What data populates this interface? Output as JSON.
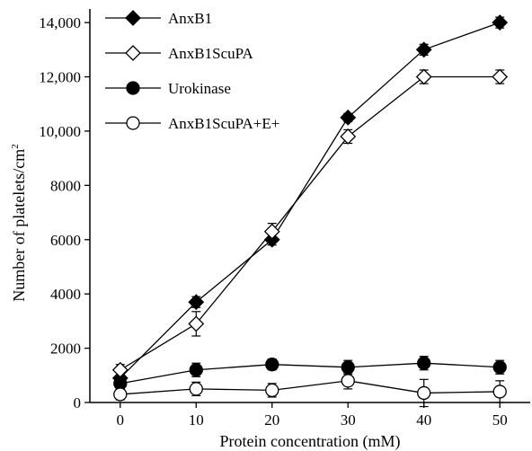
{
  "chart_data": {
    "type": "line",
    "xlabel": "Protein concentration (mM)",
    "ylabel": "Number of platelets/cm",
    "ylabel_sup": "2",
    "x": [
      0,
      10,
      20,
      30,
      40,
      50
    ],
    "xlim": [
      -4,
      54
    ],
    "ylim": [
      0,
      14500
    ],
    "x_ticks": [
      0,
      10,
      20,
      30,
      40,
      50
    ],
    "x_tick_labels": [
      "0",
      "10",
      "20",
      "30",
      "40",
      "50"
    ],
    "y_ticks": [
      0,
      2000,
      4000,
      6000,
      8000,
      10000,
      12000,
      14000
    ],
    "y_tick_labels": [
      "0",
      "2000",
      "4000",
      "6000",
      "8000",
      "10,000",
      "12,000",
      "14,000"
    ],
    "grid": false,
    "legend_position": "top-left",
    "series": [
      {
        "name": "AnxB1",
        "marker": "diamond",
        "fill": "#000000",
        "values": [
          900,
          3700,
          6000,
          10500,
          13000,
          14000
        ],
        "errors": [
          250,
          200,
          200,
          150,
          200,
          200
        ]
      },
      {
        "name": "AnxB1ScuPA",
        "marker": "diamond",
        "fill": "#ffffff",
        "values": [
          1200,
          2900,
          6300,
          9800,
          12000,
          12000
        ],
        "errors": [
          200,
          450,
          300,
          250,
          250,
          250
        ]
      },
      {
        "name": "Urokinase",
        "marker": "circle",
        "fill": "#000000",
        "values": [
          700,
          1200,
          1400,
          1300,
          1450,
          1300
        ],
        "errors": [
          200,
          250,
          200,
          250,
          250,
          250
        ]
      },
      {
        "name": "AnxB1ScuPA+E+",
        "marker": "circle",
        "fill": "#ffffff",
        "values": [
          300,
          500,
          450,
          800,
          350,
          400
        ],
        "errors": [
          200,
          250,
          250,
          300,
          500,
          400
        ]
      }
    ]
  }
}
